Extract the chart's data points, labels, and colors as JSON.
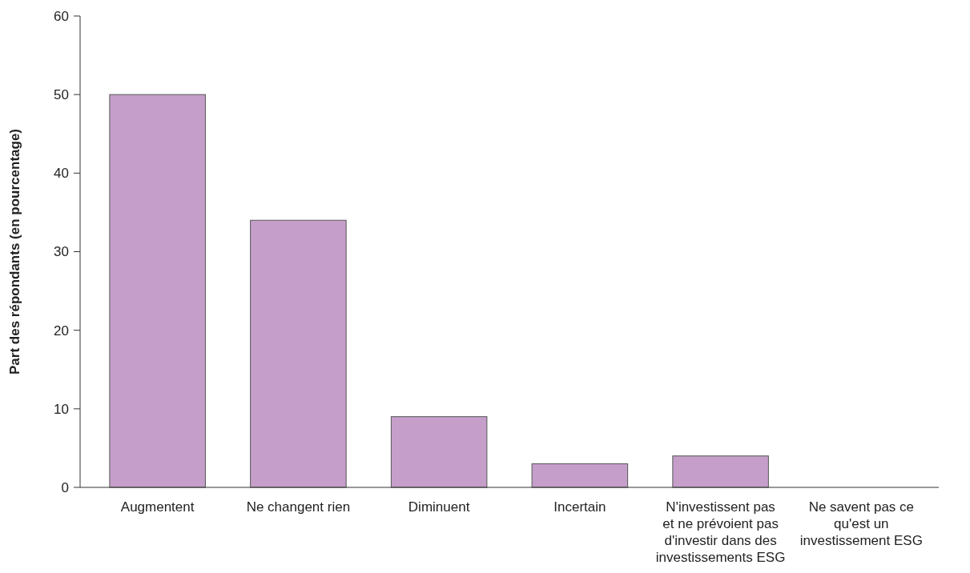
{
  "chart_data": {
    "type": "bar",
    "ylabel": "Part des répondants (en pourcentage)",
    "categories": [
      "Augmentent",
      "Ne changent rien",
      "Diminuent",
      "Incertain",
      "N'investissent pas et ne prévoient pas d'investir dans des investissements ESG",
      "Ne savent pas ce qu'est un investissement ESG"
    ],
    "values": [
      50,
      34,
      9,
      3,
      4,
      0
    ],
    "color": "#c59fc9",
    "ylim": [
      0,
      60
    ],
    "yticks": [
      0,
      10,
      20,
      30,
      40,
      50,
      60
    ],
    "grid": false
  }
}
